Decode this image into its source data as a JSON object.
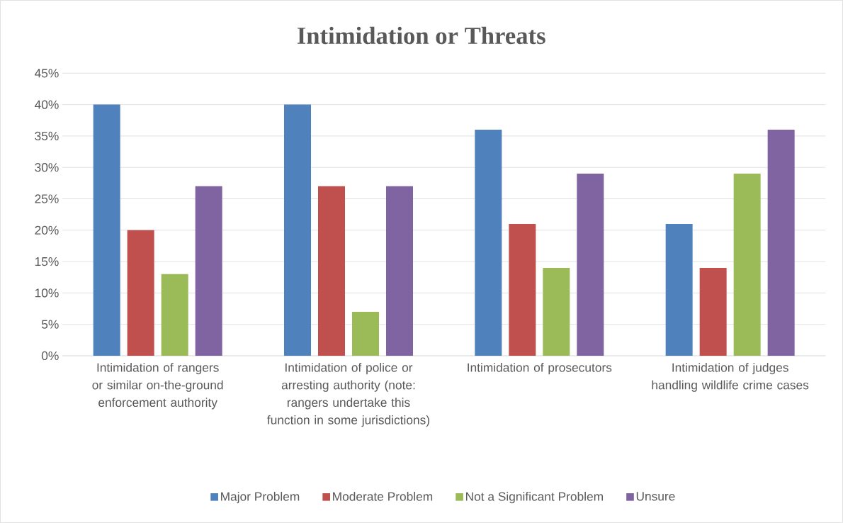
{
  "chart_data": {
    "type": "bar",
    "title": "Intimidation or Threats",
    "categories": [
      "Intimidation of rangers or similar on-the-ground enforcement authority",
      "Intimidation of police or arresting authority (note: rangers undertake this function in some jurisdictions)",
      "Intimidation of prosecutors",
      "Intimidation of judges handling wildlife crime cases"
    ],
    "series": [
      {
        "name": "Major Problem",
        "color": "#4f81bd",
        "values": [
          40,
          40,
          36,
          21
        ]
      },
      {
        "name": "Moderate Problem",
        "color": "#c0504d",
        "values": [
          20,
          27,
          21,
          14
        ]
      },
      {
        "name": "Not a Significant Problem",
        "color": "#9bbb59",
        "values": [
          13,
          7,
          14,
          29
        ]
      },
      {
        "name": "Unsure",
        "color": "#8064a2",
        "values": [
          27,
          27,
          29,
          36
        ]
      }
    ],
    "ylim": [
      0,
      45
    ],
    "yticks": [
      {
        "value": 0,
        "label": "0%"
      },
      {
        "value": 5,
        "label": "5%"
      },
      {
        "value": 10,
        "label": "10%"
      },
      {
        "value": 15,
        "label": "15%"
      },
      {
        "value": 20,
        "label": "20%"
      },
      {
        "value": 25,
        "label": "25%"
      },
      {
        "value": 30,
        "label": "30%"
      },
      {
        "value": 35,
        "label": "35%"
      },
      {
        "value": 40,
        "label": "40%"
      },
      {
        "value": 45,
        "label": "45%"
      }
    ],
    "grid": "y",
    "legend": "bottom"
  }
}
